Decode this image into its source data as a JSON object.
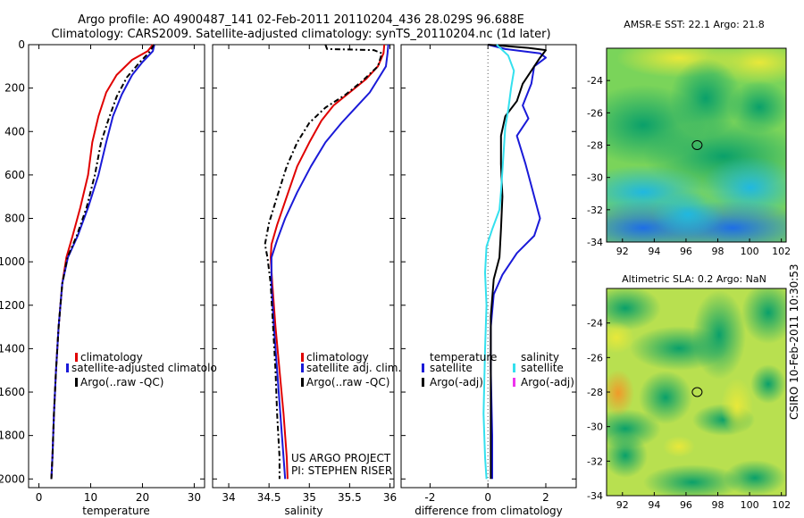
{
  "header": {
    "line1": "Argo profile: AO 4900487_141 02-Feb-2011 20110204_436 28.029S 96.688E",
    "line2": "Climatology: CARS2009. Satellite-adjusted climatology: synTS_20110204.nc (1d later)"
  },
  "side_text": "CSIRO 10-Feb-2011 10:30:53",
  "colors": {
    "climatology": "#e00000",
    "satellite": "#1a1ad8",
    "argo": "#000000",
    "sal_sat": "#33e0ee",
    "sal_argo": "#ee33ee"
  },
  "chart_data": [
    {
      "type": "line",
      "xlabel": "temperature",
      "xlim": [
        -2,
        32
      ],
      "xticks": [
        0,
        10,
        20,
        30
      ],
      "ylim": [
        2040,
        0
      ],
      "yticks": [
        0,
        200,
        400,
        600,
        800,
        1000,
        1200,
        1400,
        1600,
        1800,
        2000
      ],
      "legend": [
        "climatology",
        "satellite-adjusted climatolo",
        "Argo(..raw -QC)"
      ],
      "series": [
        {
          "name": "climatology",
          "color": "#e00000",
          "points": [
            [
              22,
              0
            ],
            [
              21,
              30
            ],
            [
              18,
              70
            ],
            [
              15,
              140
            ],
            [
              13,
              220
            ],
            [
              11.5,
              330
            ],
            [
              10.3,
              450
            ],
            [
              9.5,
              600
            ],
            [
              8,
              750
            ],
            [
              6.5,
              880
            ],
            [
              5.3,
              980
            ],
            [
              4.5,
              1100
            ],
            [
              3.8,
              1300
            ],
            [
              3.3,
              1500
            ],
            [
              2.9,
              1700
            ],
            [
              2.6,
              1900
            ],
            [
              2.4,
              2000
            ]
          ]
        },
        {
          "name": "satellite-adjusted climatology",
          "color": "#1a1ad8",
          "points": [
            [
              22.3,
              0
            ],
            [
              22,
              30
            ],
            [
              20,
              80
            ],
            [
              18,
              140
            ],
            [
              16,
              230
            ],
            [
              14.3,
              330
            ],
            [
              13,
              450
            ],
            [
              11.5,
              600
            ],
            [
              9.5,
              750
            ],
            [
              7.5,
              880
            ],
            [
              5.6,
              980
            ],
            [
              4.5,
              1100
            ],
            [
              3.8,
              1300
            ],
            [
              3.3,
              1500
            ],
            [
              2.9,
              1700
            ],
            [
              2.6,
              1900
            ],
            [
              2.4,
              2000
            ]
          ]
        },
        {
          "name": "Argo(..raw -QC)",
          "color": "#000000",
          "dash": "6,3,2,3",
          "points": [
            [
              22.2,
              0
            ],
            [
              21.5,
              30
            ],
            [
              19.5,
              80
            ],
            [
              17,
              150
            ],
            [
              15,
              240
            ],
            [
              13.5,
              340
            ],
            [
              12,
              450
            ],
            [
              10.8,
              600
            ],
            [
              9.2,
              750
            ],
            [
              7.3,
              880
            ],
            [
              5.5,
              980
            ],
            [
              4.5,
              1100
            ],
            [
              3.8,
              1300
            ],
            [
              3.3,
              1500
            ],
            [
              2.9,
              1700
            ],
            [
              2.6,
              1900
            ],
            [
              2.4,
              2000
            ]
          ]
        }
      ]
    },
    {
      "type": "line",
      "xlabel": "salinity",
      "xlim": [
        33.8,
        36.05
      ],
      "xticks": [
        34,
        34.5,
        35,
        35.5,
        36
      ],
      "ylim": [
        2040,
        0
      ],
      "yticks": [
        0,
        200,
        400,
        600,
        800,
        1000,
        1200,
        1400,
        1600,
        1800,
        2000
      ],
      "legend": [
        "climatology",
        "satellite adj. clim.",
        "Argo(..raw -QC)"
      ],
      "note": [
        "US ARGO PROJECT",
        "PI: STEPHEN RISER"
      ],
      "series": [
        {
          "name": "climatology",
          "color": "#e00000",
          "points": [
            [
              35.93,
              0
            ],
            [
              35.92,
              40
            ],
            [
              35.85,
              100
            ],
            [
              35.7,
              160
            ],
            [
              35.5,
              220
            ],
            [
              35.3,
              280
            ],
            [
              35.15,
              350
            ],
            [
              35.0,
              450
            ],
            [
              34.85,
              560
            ],
            [
              34.72,
              700
            ],
            [
              34.6,
              830
            ],
            [
              34.53,
              920
            ],
            [
              34.52,
              980
            ],
            [
              34.54,
              1100
            ],
            [
              34.58,
              1300
            ],
            [
              34.63,
              1500
            ],
            [
              34.68,
              1700
            ],
            [
              34.72,
              1900
            ],
            [
              34.73,
              2000
            ]
          ]
        },
        {
          "name": "satellite adj. clim.",
          "color": "#1a1ad8",
          "points": [
            [
              35.98,
              0
            ],
            [
              35.97,
              40
            ],
            [
              35.95,
              100
            ],
            [
              35.85,
              160
            ],
            [
              35.75,
              220
            ],
            [
              35.6,
              280
            ],
            [
              35.4,
              360
            ],
            [
              35.2,
              450
            ],
            [
              35.02,
              560
            ],
            [
              34.85,
              680
            ],
            [
              34.7,
              800
            ],
            [
              34.6,
              900
            ],
            [
              34.53,
              980
            ],
            [
              34.53,
              1100
            ],
            [
              34.56,
              1300
            ],
            [
              34.6,
              1500
            ],
            [
              34.64,
              1700
            ],
            [
              34.68,
              1900
            ],
            [
              34.7,
              2000
            ]
          ]
        },
        {
          "name": "Argo(..raw -QC)",
          "color": "#000000",
          "dash": "6,3,2,3",
          "points": [
            [
              35.2,
              0
            ],
            [
              35.22,
              20
            ],
            [
              35.8,
              25
            ],
            [
              35.9,
              40
            ],
            [
              35.85,
              100
            ],
            [
              35.65,
              170
            ],
            [
              35.45,
              230
            ],
            [
              35.2,
              290
            ],
            [
              35.0,
              360
            ],
            [
              34.85,
              450
            ],
            [
              34.72,
              560
            ],
            [
              34.6,
              700
            ],
            [
              34.5,
              820
            ],
            [
              34.45,
              920
            ],
            [
              34.48,
              980
            ],
            [
              34.52,
              1100
            ],
            [
              34.55,
              1300
            ],
            [
              34.58,
              1500
            ],
            [
              34.6,
              1700
            ],
            [
              34.63,
              1900
            ],
            [
              34.63,
              2000
            ]
          ]
        }
      ]
    },
    {
      "type": "line",
      "xlabel": "difference from climatology",
      "xlim": [
        -3,
        3.05
      ],
      "xticks": [
        -2,
        0,
        2
      ],
      "ylim": [
        2040,
        0
      ],
      "yticks": [
        0,
        200,
        400,
        600,
        800,
        1000,
        1200,
        1400,
        1600,
        1800,
        2000
      ],
      "legend_title_left": "temperature",
      "legend_title_right": "salinity",
      "legend_left": [
        "satellite",
        "Argo(-adj)"
      ],
      "legend_right": [
        "satellite",
        "Argo(-adj)"
      ],
      "series": [
        {
          "name": "temperature satellite",
          "color": "#1a1ad8",
          "points": [
            [
              0,
              0
            ],
            [
              0.6,
              20
            ],
            [
              1.8,
              40
            ],
            [
              2.0,
              60
            ],
            [
              1.6,
              100
            ],
            [
              1.5,
              180
            ],
            [
              1.2,
              280
            ],
            [
              1.4,
              340
            ],
            [
              1.0,
              420
            ],
            [
              1.3,
              550
            ],
            [
              1.5,
              650
            ],
            [
              1.8,
              800
            ],
            [
              1.6,
              880
            ],
            [
              1.0,
              960
            ],
            [
              0.5,
              1060
            ],
            [
              0.2,
              1150
            ],
            [
              0.1,
              1300
            ],
            [
              0.1,
              1500
            ],
            [
              0.15,
              1800
            ],
            [
              0.15,
              2000
            ]
          ]
        },
        {
          "name": "temperature Argo(-adj)",
          "color": "#000000",
          "points": [
            [
              0,
              0
            ],
            [
              1.4,
              15
            ],
            [
              2.0,
              25
            ],
            [
              1.8,
              60
            ],
            [
              1.5,
              120
            ],
            [
              1.2,
              180
            ],
            [
              1.0,
              260
            ],
            [
              0.6,
              330
            ],
            [
              0.45,
              420
            ],
            [
              0.45,
              550
            ],
            [
              0.5,
              700
            ],
            [
              0.45,
              850
            ],
            [
              0.4,
              980
            ],
            [
              0.2,
              1080
            ],
            [
              0.1,
              1250
            ],
            [
              0.1,
              1600
            ],
            [
              0.1,
              2000
            ]
          ]
        },
        {
          "name": "salinity satellite",
          "color": "#33e0ee",
          "points": [
            [
              0.3,
              0
            ],
            [
              0.7,
              50
            ],
            [
              0.9,
              120
            ],
            [
              0.8,
              200
            ],
            [
              0.7,
              300
            ],
            [
              0.6,
              380
            ],
            [
              0.55,
              480
            ],
            [
              0.5,
              580
            ],
            [
              0.45,
              680
            ],
            [
              0.4,
              760
            ],
            [
              0.15,
              850
            ],
            [
              -0.05,
              930
            ],
            [
              -0.1,
              1050
            ],
            [
              -0.05,
              1200
            ],
            [
              -0.1,
              1400
            ],
            [
              -0.15,
              1700
            ],
            [
              -0.1,
              1900
            ],
            [
              -0.05,
              2000
            ]
          ]
        }
      ]
    },
    {
      "type": "heatmap",
      "title": "AMSR-E SST: 22.1 Argo: 21.8",
      "xticks": [
        92,
        94,
        96,
        98,
        100,
        102
      ],
      "yticks": [
        -24,
        -26,
        -28,
        -30,
        -32,
        -34
      ],
      "xlim": [
        91,
        102.3
      ],
      "ylim": [
        -34,
        -22
      ],
      "marker": [
        96.7,
        -28.0
      ]
    },
    {
      "type": "heatmap",
      "title": "Altimetric SLA: 0.2 Argo: NaN",
      "xticks": [
        92,
        94,
        96,
        98,
        100,
        102
      ],
      "yticks": [
        -24,
        -26,
        -28,
        -30,
        -32,
        -34
      ],
      "xlim": [
        91,
        102.3
      ],
      "ylim": [
        -34,
        -22
      ],
      "marker": [
        96.7,
        -28.0
      ]
    }
  ]
}
